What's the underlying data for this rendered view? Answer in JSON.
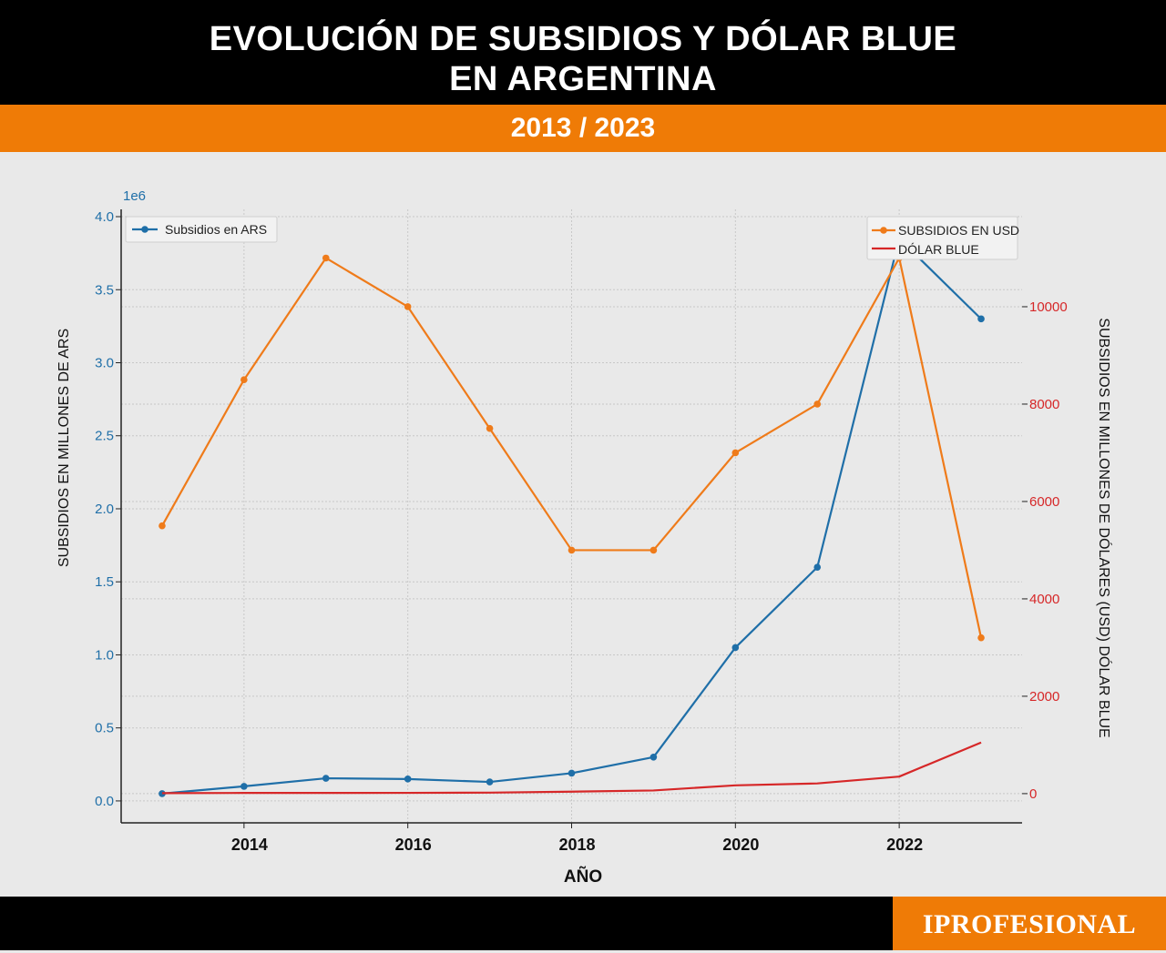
{
  "header": {
    "title_line1": "EVOLUCIÓN DE SUBSIDIOS Y DÓLAR BLUE",
    "title_line2": "EN ARGENTINA",
    "subtitle": "2013 / 2023"
  },
  "brand": {
    "name": "IPROFESIONAL"
  },
  "colors": {
    "ars": "#1f6fa8",
    "usd": "#ef7b1a",
    "blue_dollar": "#d62728",
    "left_axis": "#1f6fa8",
    "right_axis": "#d62728",
    "header_bg": "#000000",
    "accent": "#ef7b06"
  },
  "chart_data": {
    "type": "line",
    "xlabel": "AÑO",
    "ylabel_left": "SUBSIDIOS EN MILLONES DE ARS",
    "ylabel_right": "SUBSIDIOS EN MILLONES DE DÓLARES (USD) DÓLAR BLUE",
    "left_scale_label": "1e6",
    "x": [
      2013,
      2014,
      2015,
      2016,
      2017,
      2018,
      2019,
      2020,
      2021,
      2022,
      2023
    ],
    "x_ticks": [
      "2014",
      "2016",
      "2018",
      "2020",
      "2022"
    ],
    "xlim": [
      2012.5,
      2023.5
    ],
    "ylim_left": [
      -0.15,
      4.05
    ],
    "ylim_right": [
      -600,
      12000
    ],
    "y_ticks_left": [
      "0.0",
      "0.5",
      "1.0",
      "1.5",
      "2.0",
      "2.5",
      "3.0",
      "3.5",
      "4.0"
    ],
    "y_ticks_right": [
      "0",
      "2000",
      "4000",
      "6000",
      "8000",
      "10000"
    ],
    "grid": true,
    "series": [
      {
        "name": "Subsidios en ARS",
        "axis": "left",
        "markers": true,
        "values": [
          0.05,
          0.1,
          0.155,
          0.15,
          0.13,
          0.19,
          0.3,
          1.05,
          1.6,
          3.85,
          3.3
        ]
      },
      {
        "name": "SUBSIDIOS EN USD",
        "axis": "right",
        "markers": true,
        "values": [
          5500,
          8500,
          11000,
          10000,
          7500,
          5000,
          5000,
          7000,
          8000,
          11000,
          3200
        ]
      },
      {
        "name": "DÓLAR BLUE",
        "axis": "right",
        "markers": false,
        "values": [
          10,
          14,
          15,
          16,
          20,
          40,
          65,
          170,
          210,
          350,
          1050
        ]
      }
    ],
    "legends": [
      {
        "placement": "top-left",
        "entries": [
          "Subsidios en ARS"
        ]
      },
      {
        "placement": "top-right",
        "entries": [
          "SUBSIDIOS EN USD",
          "DÓLAR BLUE"
        ]
      }
    ]
  }
}
